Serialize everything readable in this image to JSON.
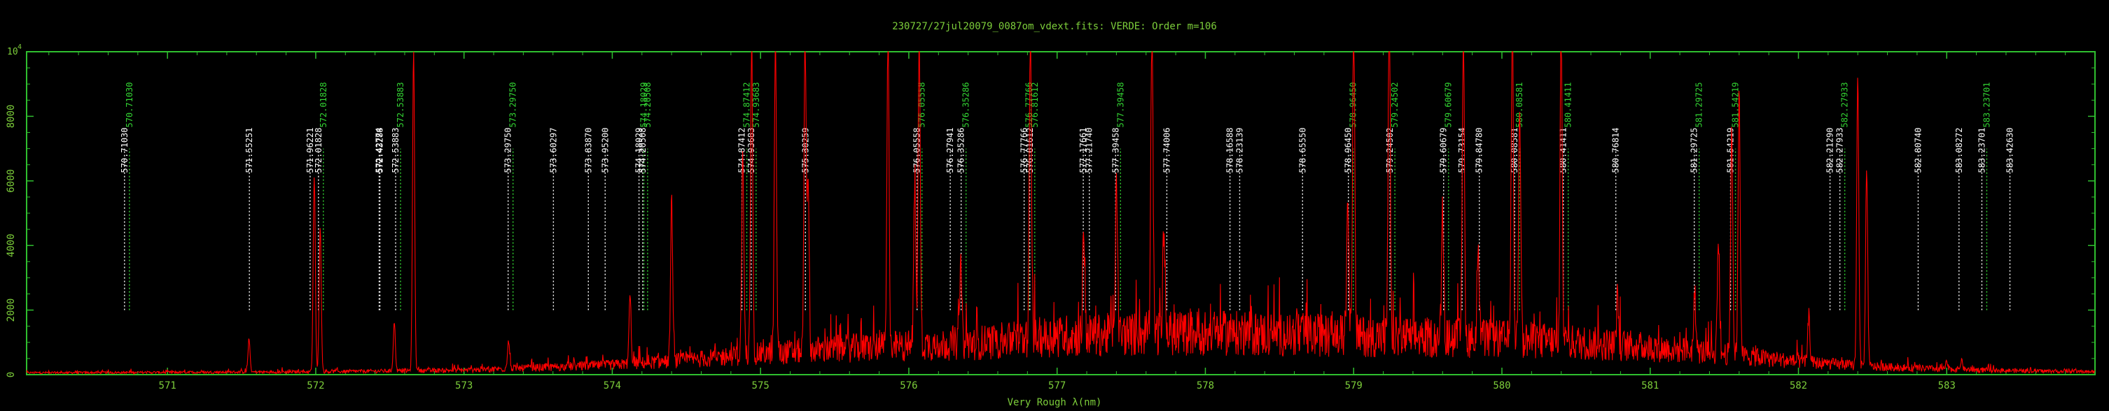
{
  "chart_data": {
    "type": "line",
    "title": "230727/27jul20079_0087om_vdext.fits: VERDE: Order m=106",
    "xlabel": "Very Rough λ(nm)",
    "ylabel": "",
    "xlim": [
      570.05,
      584.0
    ],
    "ylim": [
      0,
      10000
    ],
    "y_exponent_label": "10",
    "y_exponent_sup": "4",
    "x_ticks": [
      571,
      572,
      573,
      574,
      575,
      576,
      577,
      578,
      579,
      580,
      581,
      582,
      583
    ],
    "y_ticks": [
      0,
      2000,
      4000,
      6000,
      8000
    ],
    "y_tick_labels": [
      "0",
      "2000",
      "4000",
      "6000",
      "8000"
    ],
    "colors": {
      "axis": "#2fbf2f",
      "text": "#7ccd3a",
      "spectrum": "#ff0000",
      "line_white": "#ffffff",
      "line_green": "#33d633"
    },
    "series": [
      {
        "color": "#ff0000",
        "baseline_x": [
          570.05,
          571.0,
          572.0,
          573.0,
          574.0,
          574.5,
          575.0,
          575.5,
          576.0,
          576.5,
          577.0,
          577.5,
          578.0,
          578.5,
          579.0,
          579.5,
          580.0,
          580.5,
          581.0,
          581.5,
          582.0,
          582.5,
          583.0,
          583.5,
          584.0
        ],
        "baseline_y": [
          60,
          70,
          90,
          140,
          300,
          450,
          650,
          800,
          900,
          1000,
          1200,
          1250,
          1300,
          1250,
          1200,
          1150,
          1100,
          1000,
          850,
          650,
          400,
          250,
          170,
          120,
          90
        ],
        "peaks": [
          {
            "x": 571.55,
            "y": 1000
          },
          {
            "x": 571.99,
            "y": 6000
          },
          {
            "x": 572.03,
            "y": 4500
          },
          {
            "x": 572.53,
            "y": 1500
          },
          {
            "x": 572.66,
            "y": 10000
          },
          {
            "x": 573.3,
            "y": 900
          },
          {
            "x": 574.12,
            "y": 2100
          },
          {
            "x": 574.4,
            "y": 5000
          },
          {
            "x": 574.88,
            "y": 6200
          },
          {
            "x": 574.94,
            "y": 10000
          },
          {
            "x": 575.1,
            "y": 10000
          },
          {
            "x": 575.3,
            "y": 10000
          },
          {
            "x": 575.32,
            "y": 5200
          },
          {
            "x": 575.86,
            "y": 10000
          },
          {
            "x": 576.04,
            "y": 5000
          },
          {
            "x": 576.07,
            "y": 10000
          },
          {
            "x": 576.35,
            "y": 2600
          },
          {
            "x": 576.82,
            "y": 10000
          },
          {
            "x": 577.18,
            "y": 3200
          },
          {
            "x": 577.4,
            "y": 5000
          },
          {
            "x": 577.64,
            "y": 10000
          },
          {
            "x": 577.72,
            "y": 3300
          },
          {
            "x": 578.96,
            "y": 4800
          },
          {
            "x": 579.0,
            "y": 10000
          },
          {
            "x": 579.24,
            "y": 10000
          },
          {
            "x": 579.6,
            "y": 4000
          },
          {
            "x": 579.74,
            "y": 9800
          },
          {
            "x": 579.84,
            "y": 3200
          },
          {
            "x": 580.07,
            "y": 10000
          },
          {
            "x": 580.12,
            "y": 7500
          },
          {
            "x": 580.4,
            "y": 10000
          },
          {
            "x": 580.78,
            "y": 1500
          },
          {
            "x": 581.3,
            "y": 1800
          },
          {
            "x": 581.46,
            "y": 3600
          },
          {
            "x": 581.55,
            "y": 7000
          },
          {
            "x": 581.6,
            "y": 8300
          },
          {
            "x": 582.07,
            "y": 1500
          },
          {
            "x": 582.4,
            "y": 8900
          },
          {
            "x": 582.46,
            "y": 6000
          },
          {
            "x": 583.0,
            "y": 200
          },
          {
            "x": 583.1,
            "y": 300
          }
        ]
      }
    ],
    "line_markers": [
      {
        "x": 570.7103,
        "label": "570.71030",
        "color": "white"
      },
      {
        "x": 570.7103,
        "label": "570.71030",
        "color": "green"
      },
      {
        "x": 571.55251,
        "label": "571.55251",
        "color": "white"
      },
      {
        "x": 571.96221,
        "label": "571.96221",
        "color": "white"
      },
      {
        "x": 572.01828,
        "label": "572.01828",
        "color": "white"
      },
      {
        "x": 572.01828,
        "label": "572.01828",
        "color": "green"
      },
      {
        "x": 572.42774,
        "label": "572.42774",
        "color": "white"
      },
      {
        "x": 572.43288,
        "label": "572.43288",
        "color": "white"
      },
      {
        "x": 572.53883,
        "label": "572.53883",
        "color": "white"
      },
      {
        "x": 572.53883,
        "label": "572.53883",
        "color": "green"
      },
      {
        "x": 573.2975,
        "label": "573.29750",
        "color": "white"
      },
      {
        "x": 573.2975,
        "label": "573.29750",
        "color": "green"
      },
      {
        "x": 573.60297,
        "label": "573.60297",
        "color": "white"
      },
      {
        "x": 573.8387,
        "label": "573.83870",
        "color": "white"
      },
      {
        "x": 573.952,
        "label": "573.95200",
        "color": "white"
      },
      {
        "x": 574.18029,
        "label": "574.18029",
        "color": "white"
      },
      {
        "x": 574.18029,
        "label": "574.18029",
        "color": "green"
      },
      {
        "x": 574.20508,
        "label": "574.20508",
        "color": "white"
      },
      {
        "x": 574.20508,
        "label": "574.20508",
        "color": "green"
      },
      {
        "x": 574.87412,
        "label": "574.87412",
        "color": "white"
      },
      {
        "x": 574.87412,
        "label": "574.87412",
        "color": "green"
      },
      {
        "x": 574.93683,
        "label": "574.93683",
        "color": "white"
      },
      {
        "x": 574.93683,
        "label": "574.93683",
        "color": "green"
      },
      {
        "x": 575.30259,
        "label": "575.30259",
        "color": "white"
      },
      {
        "x": 576.05558,
        "label": "576.05558",
        "color": "white"
      },
      {
        "x": 576.05558,
        "label": "576.05558",
        "color": "green"
      },
      {
        "x": 576.27941,
        "label": "576.27941",
        "color": "white"
      },
      {
        "x": 576.35286,
        "label": "576.35286",
        "color": "white"
      },
      {
        "x": 576.35286,
        "label": "576.35286",
        "color": "green"
      },
      {
        "x": 576.77766,
        "label": "576.77766",
        "color": "white"
      },
      {
        "x": 576.77766,
        "label": "576.77766",
        "color": "green"
      },
      {
        "x": 576.81612,
        "label": "576.81612",
        "color": "white"
      },
      {
        "x": 576.81612,
        "label": "576.81612",
        "color": "green"
      },
      {
        "x": 577.17661,
        "label": "577.17661",
        "color": "white"
      },
      {
        "x": 577.2174,
        "label": "577.21740",
        "color": "white"
      },
      {
        "x": 577.39458,
        "label": "577.39458",
        "color": "white"
      },
      {
        "x": 577.39458,
        "label": "577.39458",
        "color": "green"
      },
      {
        "x": 577.74006,
        "label": "577.74006",
        "color": "white"
      },
      {
        "x": 578.16588,
        "label": "578.16588",
        "color": "white"
      },
      {
        "x": 578.23139,
        "label": "578.23139",
        "color": "white"
      },
      {
        "x": 578.6555,
        "label": "578.65550",
        "color": "white"
      },
      {
        "x": 578.9645,
        "label": "578.96450",
        "color": "white"
      },
      {
        "x": 578.9645,
        "label": "578.96450",
        "color": "green"
      },
      {
        "x": 579.24502,
        "label": "579.24502",
        "color": "white"
      },
      {
        "x": 579.24502,
        "label": "579.24502",
        "color": "green"
      },
      {
        "x": 579.60679,
        "label": "579.60679",
        "color": "white"
      },
      {
        "x": 579.60679,
        "label": "579.60679",
        "color": "green"
      },
      {
        "x": 579.73154,
        "label": "579.73154",
        "color": "white"
      },
      {
        "x": 579.8478,
        "label": "579.84780",
        "color": "white"
      },
      {
        "x": 580.08581,
        "label": "580.08581",
        "color": "white"
      },
      {
        "x": 580.08581,
        "label": "580.08581",
        "color": "green"
      },
      {
        "x": 580.41411,
        "label": "580.41411",
        "color": "white"
      },
      {
        "x": 580.41411,
        "label": "580.41411",
        "color": "green"
      },
      {
        "x": 580.76814,
        "label": "580.76814",
        "color": "white"
      },
      {
        "x": 581.29725,
        "label": "581.29725",
        "color": "white"
      },
      {
        "x": 581.29725,
        "label": "581.29725",
        "color": "green"
      },
      {
        "x": 581.54219,
        "label": "581.54219",
        "color": "white"
      },
      {
        "x": 581.54219,
        "label": "581.54219",
        "color": "green"
      },
      {
        "x": 582.2129,
        "label": "582.21290",
        "color": "white"
      },
      {
        "x": 582.27933,
        "label": "582.27933",
        "color": "white"
      },
      {
        "x": 582.27933,
        "label": "582.27933",
        "color": "green"
      },
      {
        "x": 582.8074,
        "label": "582.80740",
        "color": "white"
      },
      {
        "x": 583.08272,
        "label": "583.08272",
        "color": "white"
      },
      {
        "x": 583.23701,
        "label": "583.23701",
        "color": "white"
      },
      {
        "x": 583.23701,
        "label": "583.23701",
        "color": "green"
      },
      {
        "x": 583.4263,
        "label": "583.42630",
        "color": "white"
      }
    ]
  }
}
